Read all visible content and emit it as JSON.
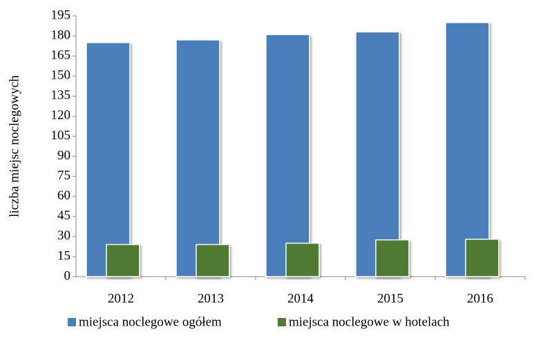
{
  "chart_data": {
    "type": "bar",
    "y_label": "liczba miejsc noclegowych",
    "categories": [
      "2012",
      "2013",
      "2014",
      "2015",
      "2016"
    ],
    "series": [
      {
        "name": "miejsca noclegowe ogółem",
        "color": "#4a7ebb",
        "values": [
          175,
          177,
          181,
          183,
          190
        ]
      },
      {
        "name": "miejsca noclegowe w hotelach",
        "color": "#4f7a33",
        "values": [
          24,
          24,
          25,
          27.5,
          28
        ]
      }
    ],
    "ylim": [
      0,
      195
    ],
    "yticks": [
      0,
      15,
      30,
      45,
      60,
      75,
      90,
      105,
      120,
      135,
      150,
      165,
      180,
      195
    ]
  }
}
